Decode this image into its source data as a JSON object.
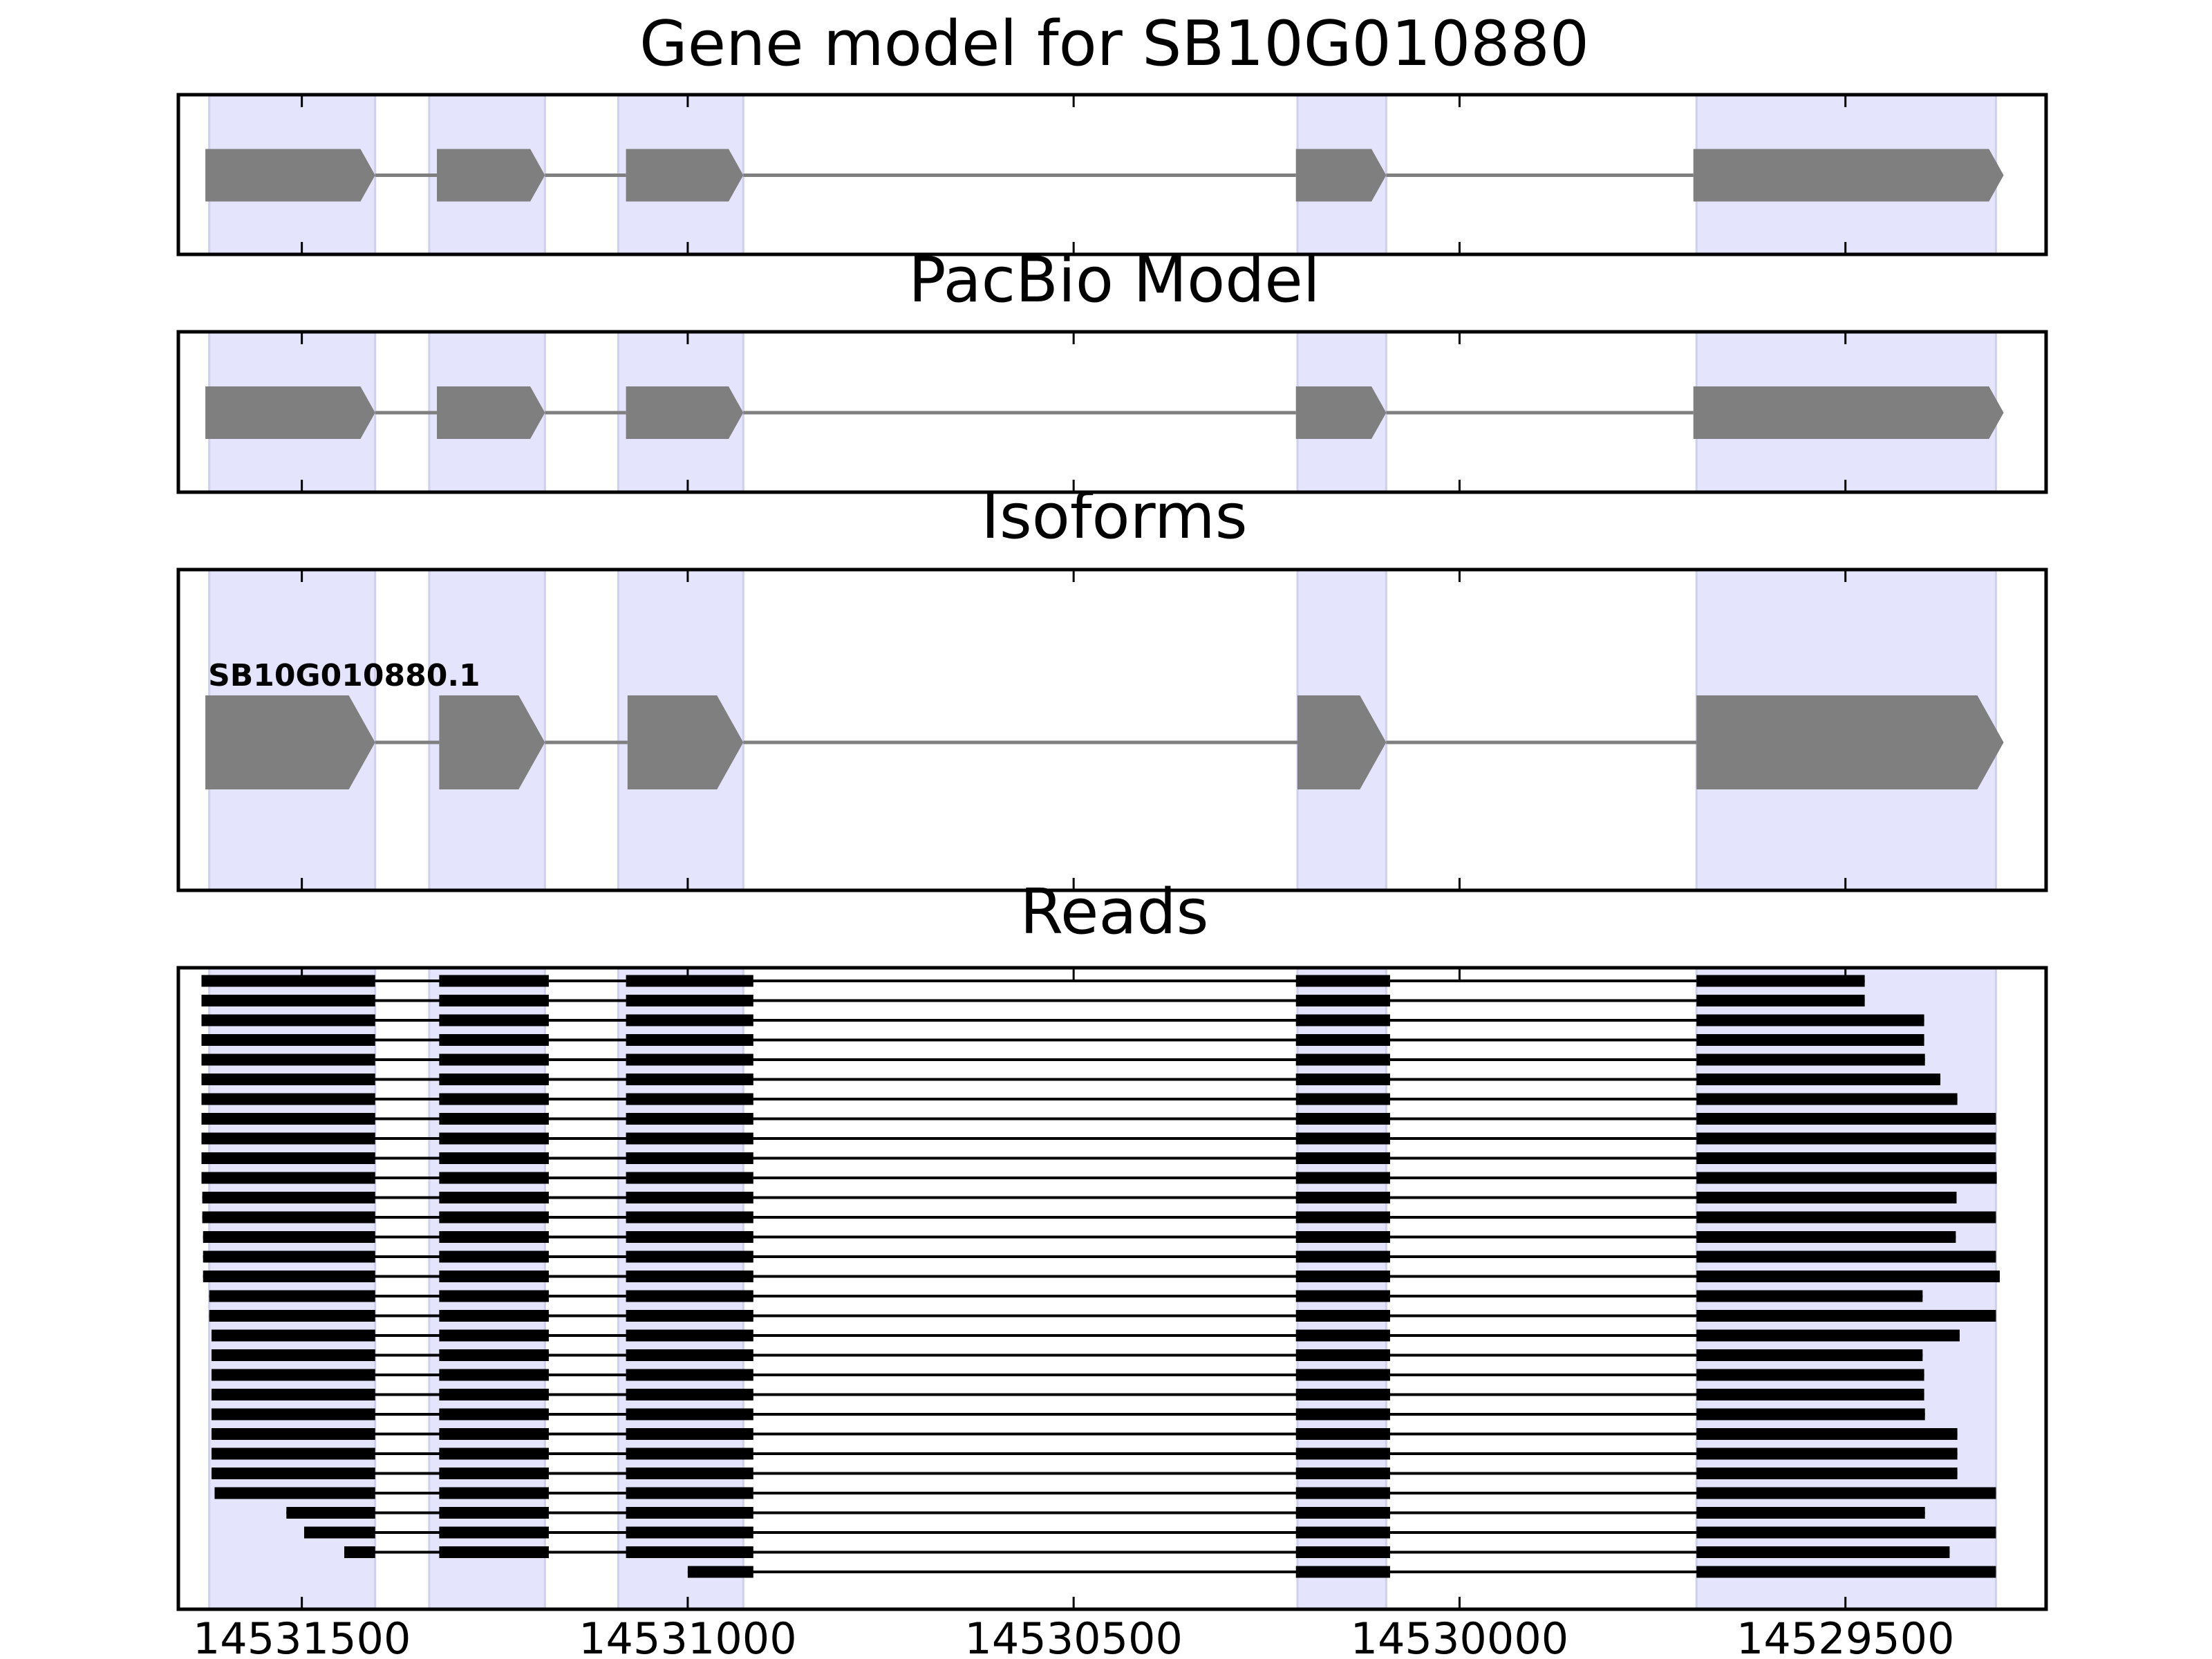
{
  "chart_data": {
    "type": "gene_structure",
    "x_axis": {
      "direction": "reversed",
      "xlim": [
        14531660,
        14529240
      ],
      "ticks": [
        14531500,
        14531000,
        14530500,
        14530000,
        14529500
      ],
      "tick_labels": [
        "14531500",
        "14531000",
        "14530500",
        "14530000",
        "14529500"
      ]
    },
    "exon_highlights": [
      [
        14531620,
        14531405
      ],
      [
        14531335,
        14531185
      ],
      [
        14531090,
        14530928
      ],
      [
        14530210,
        14530095
      ],
      [
        14529693,
        14529305
      ]
    ],
    "panels": [
      {
        "id": "gene-model",
        "title": "Gene model for SB10G010880",
        "tracks": [
          {
            "label": "",
            "exons": [
              [
                14531625,
                14531405
              ],
              [
                14531325,
                14531185
              ],
              [
                14531080,
                14530928
              ],
              [
                14530212,
                14530095
              ],
              [
                14529697,
                14529295
              ]
            ]
          }
        ]
      },
      {
        "id": "pacbio-model",
        "title": "PacBio Model",
        "tracks": [
          {
            "label": "",
            "exons": [
              [
                14531625,
                14531405
              ],
              [
                14531325,
                14531185
              ],
              [
                14531080,
                14530928
              ],
              [
                14530212,
                14530095
              ],
              [
                14529697,
                14529295
              ]
            ]
          }
        ]
      },
      {
        "id": "isoforms",
        "title": "Isoforms",
        "tracks": [
          {
            "label": "SB10G010880.1",
            "exons": [
              [
                14531625,
                14531405
              ],
              [
                14531322,
                14531185
              ],
              [
                14531078,
                14530928
              ],
              [
                14530210,
                14530095
              ],
              [
                14529693,
                14529295
              ]
            ]
          }
        ]
      }
    ],
    "reads": {
      "title": "Reads",
      "inner_exons": [
        [
          14531322,
          14531180
        ],
        [
          14531080,
          14530915
        ],
        [
          14530212,
          14530090
        ]
      ],
      "items": [
        {
          "start": 14531630,
          "end": 14529475
        },
        {
          "start": 14531630,
          "end": 14529475
        },
        {
          "start": 14531630,
          "end": 14529398
        },
        {
          "start": 14531630,
          "end": 14529398
        },
        {
          "start": 14531630,
          "end": 14529397
        },
        {
          "start": 14531630,
          "end": 14529377
        },
        {
          "start": 14531630,
          "end": 14529355
        },
        {
          "start": 14531630,
          "end": 14529305
        },
        {
          "start": 14531630,
          "end": 14529305
        },
        {
          "start": 14531630,
          "end": 14529305
        },
        {
          "start": 14531630,
          "end": 14529304
        },
        {
          "start": 14531629,
          "end": 14529356
        },
        {
          "start": 14531629,
          "end": 14529305
        },
        {
          "start": 14531628,
          "end": 14529357
        },
        {
          "start": 14531628,
          "end": 14529305
        },
        {
          "start": 14531628,
          "end": 14529300
        },
        {
          "start": 14531620,
          "end": 14529400
        },
        {
          "start": 14531620,
          "end": 14529305
        },
        {
          "start": 14531617,
          "end": 14529352
        },
        {
          "start": 14531617,
          "end": 14529400
        },
        {
          "start": 14531617,
          "end": 14529398
        },
        {
          "start": 14531617,
          "end": 14529398
        },
        {
          "start": 14531617,
          "end": 14529397
        },
        {
          "start": 14531617,
          "end": 14529355
        },
        {
          "start": 14531617,
          "end": 14529355
        },
        {
          "start": 14531617,
          "end": 14529355
        },
        {
          "start": 14531613,
          "end": 14529305
        },
        {
          "start": 14531520,
          "end": 14529397
        },
        {
          "start": 14531497,
          "end": 14529305
        },
        {
          "start": 14531445,
          "end": 14529365
        },
        {
          "start": 14531000,
          "end": 14529305
        }
      ]
    },
    "colors": {
      "highlight": "#e4e4fc",
      "highlight_edge": "#cfcfee",
      "exon": "#7f7f7f",
      "intron": "#7f7f7f",
      "read": "#000000",
      "frame": "#000000"
    }
  }
}
